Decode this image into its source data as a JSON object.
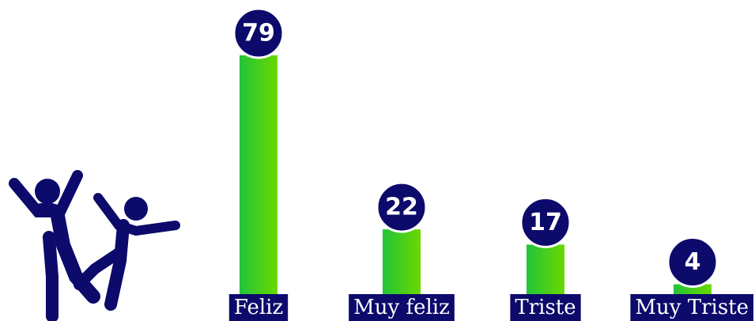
{
  "chart_data": {
    "type": "bar",
    "categories": [
      "Feliz",
      "Muy feliz",
      "Triste",
      "Muy Triste"
    ],
    "values": [
      79,
      22,
      17,
      4
    ],
    "color": "#3fd11a",
    "label_color": "#0c0a6b"
  }
}
